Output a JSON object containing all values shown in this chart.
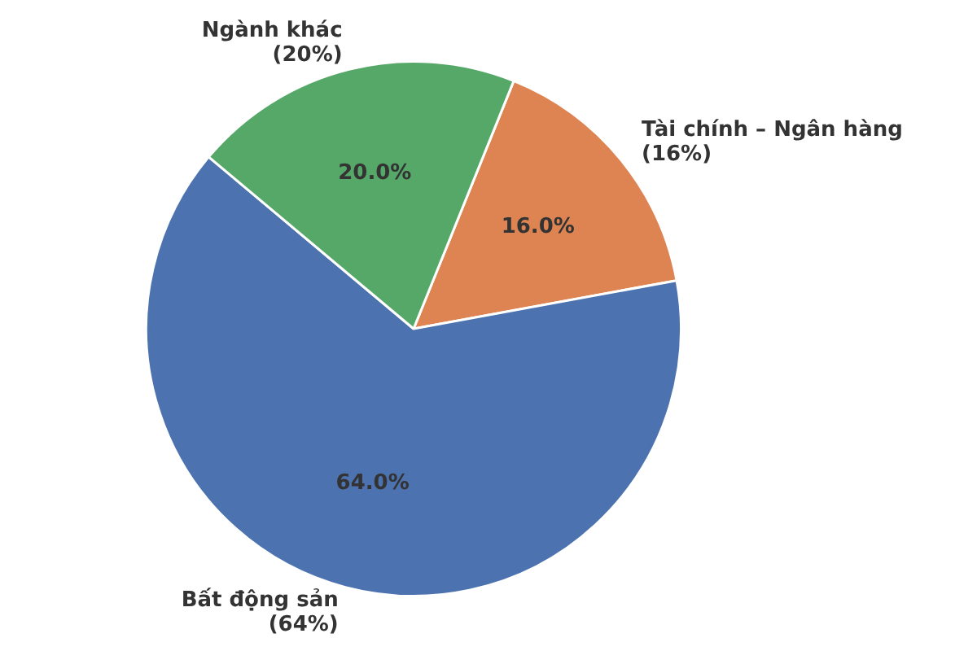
{
  "chart_data": {
    "type": "pie",
    "categories": [
      "Tài chính – Ngân hàng",
      "Bất động sản",
      "Ngành khác"
    ],
    "values": [
      16,
      64,
      20
    ],
    "colors": [
      "#dd8452",
      "#4c72b0",
      "#55a868"
    ],
    "value_labels": [
      "16.0%",
      "64.0%",
      "20.0%"
    ],
    "annotations": [
      "(16%)",
      "(64%)",
      "(20%)"
    ]
  }
}
